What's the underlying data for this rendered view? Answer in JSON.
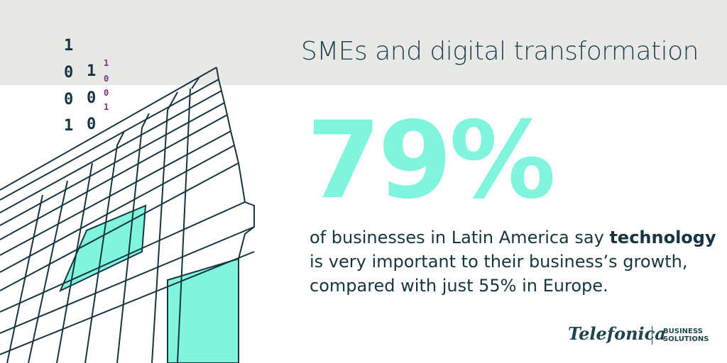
{
  "header": {
    "title": "SMEs and digital transformation"
  },
  "binary": {
    "large": [
      [
        "1",
        "0",
        "0",
        "1"
      ],
      [
        "1",
        "0",
        "0"
      ]
    ],
    "small": [
      "1",
      "0",
      "0",
      "1"
    ]
  },
  "stat": {
    "value": "79%"
  },
  "body": {
    "lines": [
      [
        "of businesses in Latin America say ",
        "technology"
      ],
      [
        "is very important to their business’s growth,"
      ],
      [
        "compared with just 55% in Europe."
      ]
    ]
  },
  "logo": {
    "brand": "Telefonica",
    "division": [
      "BUSINESS",
      "SOLUTIONS"
    ]
  }
}
